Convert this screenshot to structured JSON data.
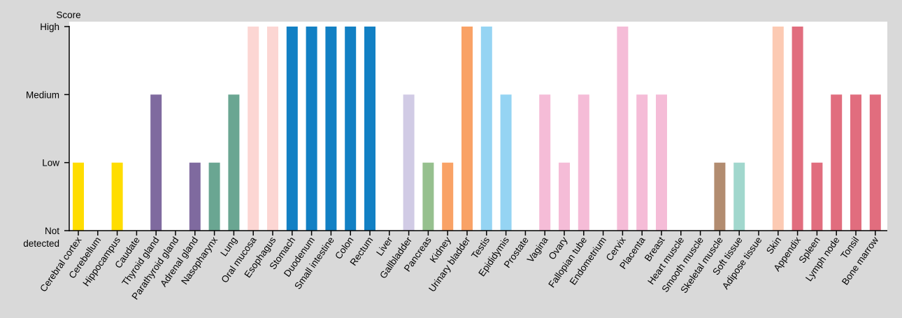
{
  "chart_data": {
    "type": "bar",
    "ylabel": "Score",
    "y_levels": [
      "Not detected",
      "Low",
      "Medium",
      "High"
    ],
    "ylim": [
      0,
      3
    ],
    "grid": false,
    "legend": "none",
    "background": "#ffffff",
    "page_background": "#d9d9d9",
    "categories": [
      "Cerebral cortex",
      "Cerebellum",
      "Hippocampus",
      "Caudate",
      "Thyroid gland",
      "Parathyroid gland",
      "Adrenal gland",
      "Nasopharynx",
      "Lung",
      "Oral mucosa",
      "Esophagus",
      "Stomach",
      "Duodenum",
      "Small intestine",
      "Colon",
      "Rectum",
      "Liver",
      "Gallbladder",
      "Pancreas",
      "Kidney",
      "Urinary bladder",
      "Testis",
      "Epididymis",
      "Prostate",
      "Vagina",
      "Ovary",
      "Fallopian tube",
      "Endometrium",
      "Cervix",
      "Placenta",
      "Breast",
      "Heart muscle",
      "Smooth muscle",
      "Skeletal muscle",
      "Soft tissue",
      "Adipose tissue",
      "Skin",
      "Appendix",
      "Spleen",
      "Lymph node",
      "Tonsil",
      "Bone marrow"
    ],
    "values": [
      1,
      0,
      1,
      0,
      2,
      0,
      1,
      1,
      2,
      3,
      3,
      3,
      3,
      3,
      3,
      3,
      0,
      2,
      1,
      1,
      3,
      3,
      2,
      0,
      2,
      1,
      2,
      0,
      3,
      2,
      2,
      0,
      0,
      1,
      1,
      0,
      3,
      3,
      1,
      2,
      2,
      2
    ],
    "colors": [
      "#ffdd00",
      "#ffdd00",
      "#ffdd00",
      "#ffdd00",
      "#7f6a9f",
      "#7f6a9f",
      "#7f6a9f",
      "#6aa692",
      "#6aa692",
      "#fcd6d3",
      "#fcd6d3",
      "#1280c4",
      "#1280c4",
      "#1280c4",
      "#1280c4",
      "#1280c4",
      "#d1cbe5",
      "#d1cbe5",
      "#96c08e",
      "#f9a266",
      "#f9a266",
      "#95d4f3",
      "#95d4f3",
      "#95d4f3",
      "#f5bcd7",
      "#f5bcd7",
      "#f5bcd7",
      "#f5bcd7",
      "#f5bcd7",
      "#f5bcd7",
      "#f5bcd7",
      "#b28c70",
      "#b28c70",
      "#b28c70",
      "#a1d7cd",
      "#a1d7cd",
      "#fccab3",
      "#e16d7e",
      "#e16d7e",
      "#e16d7e",
      "#e16d7e",
      "#e16d7e"
    ]
  }
}
